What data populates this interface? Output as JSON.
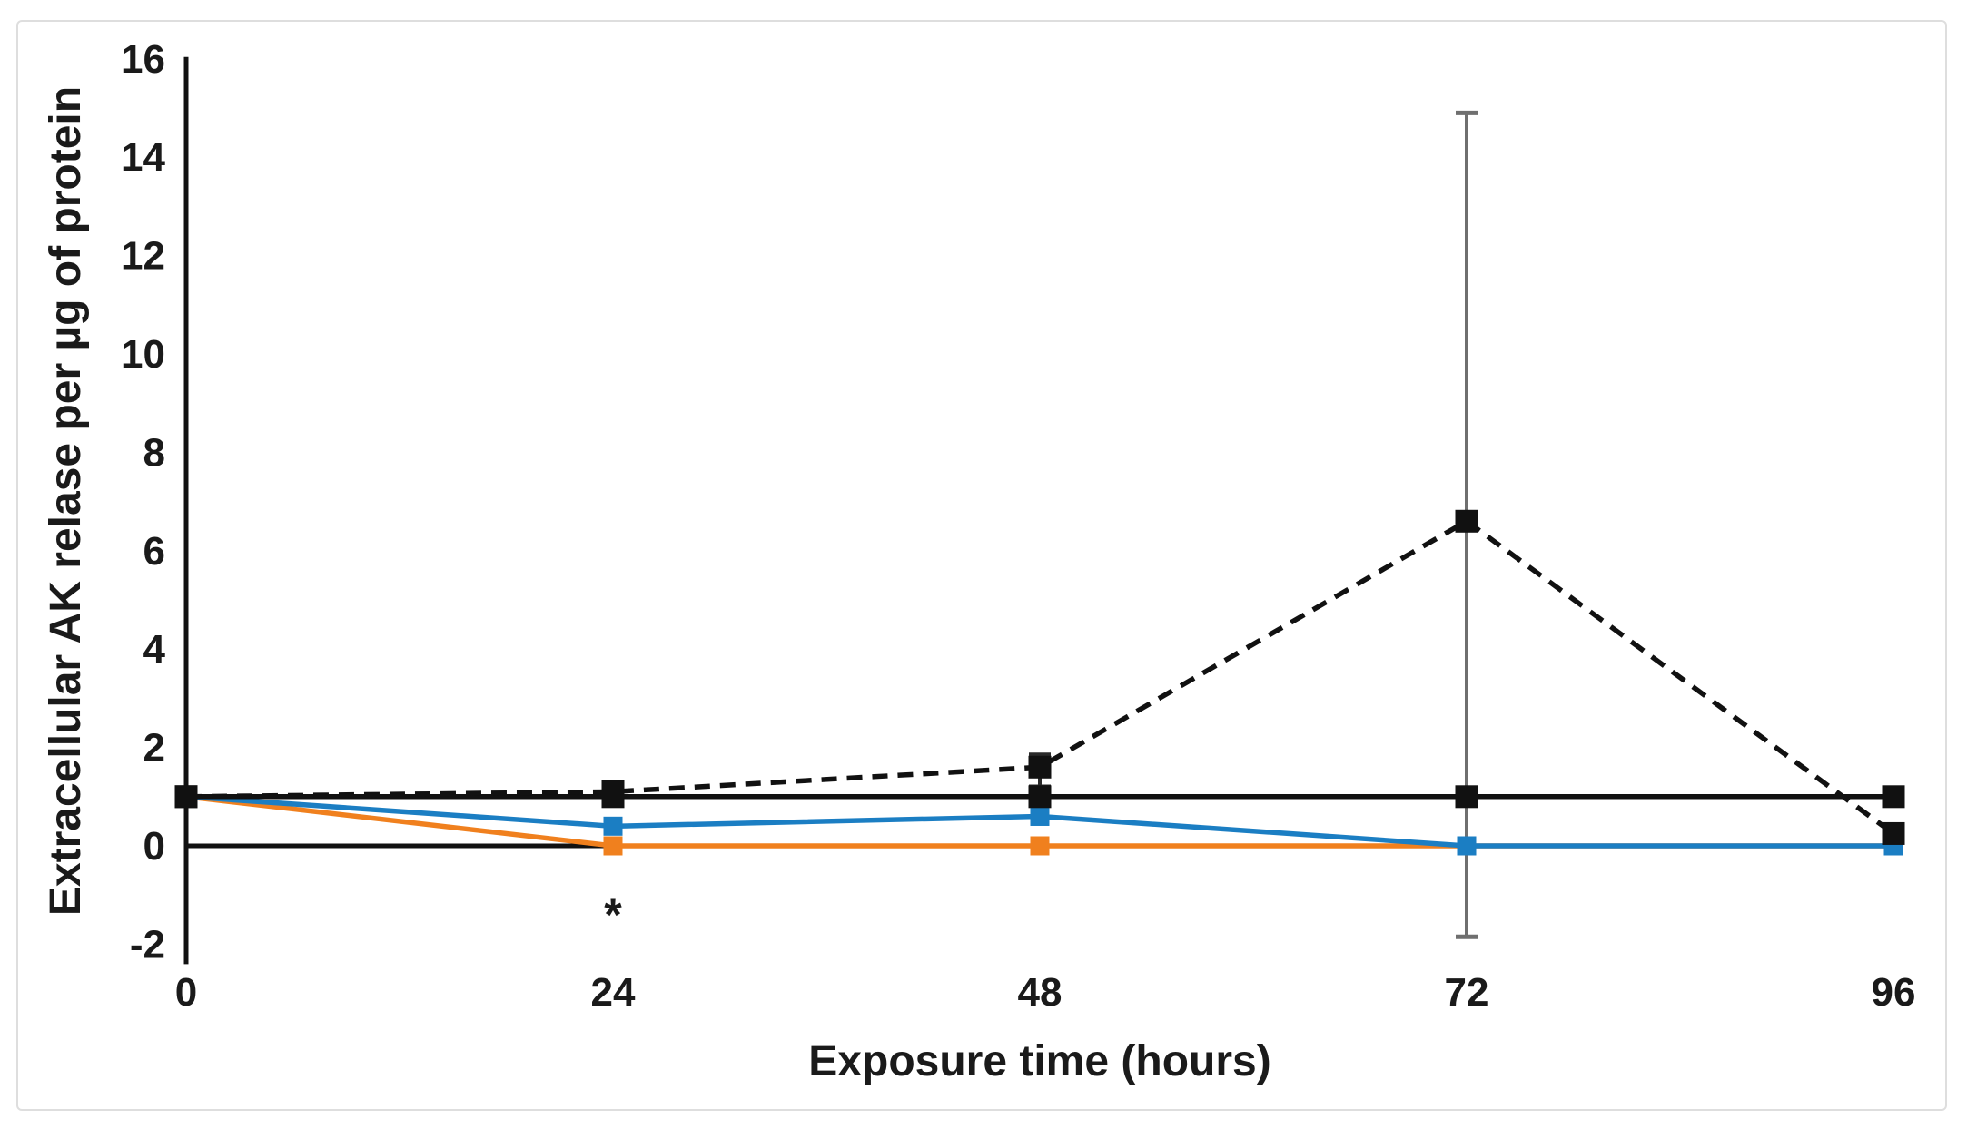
{
  "figure": {
    "background": "#ffffff",
    "border_color": "#dedede"
  },
  "chart_data": {
    "type": "line",
    "title": "",
    "xlabel": "Exposure time (hours)",
    "ylabel": "Extracellular AK relase per µg of protein",
    "xlim": [
      0,
      96
    ],
    "ylim": [
      -2,
      16
    ],
    "grid": false,
    "legend": "none",
    "x_ticks": [
      0,
      24,
      48,
      72,
      96
    ],
    "y_ticks": [
      16,
      14,
      12,
      10,
      8,
      6,
      4,
      2,
      0,
      -2
    ],
    "x": [
      0,
      24,
      48,
      72,
      96
    ],
    "series": [
      {
        "name": "orange-solid",
        "color": "#F0801E",
        "dash": "none",
        "marker": "square",
        "values": [
          1.0,
          0.0,
          0.0,
          0.0,
          0.0
        ]
      },
      {
        "name": "blue-solid",
        "color": "#1B7EC3",
        "dash": "none",
        "marker": "square",
        "values": [
          1.0,
          0.4,
          0.6,
          0.0,
          0.0
        ]
      },
      {
        "name": "black-solid",
        "color": "#111111",
        "dash": "none",
        "marker": "square",
        "values": [
          1.0,
          1.0,
          1.0,
          1.0,
          1.0
        ]
      },
      {
        "name": "black-dashed",
        "color": "#111111",
        "dash": "dashed",
        "marker": "square",
        "values": [
          1.0,
          1.1,
          1.6,
          6.6,
          0.25
        ]
      }
    ],
    "error_bars": [
      {
        "series": "black-dashed",
        "x": 48,
        "low": 1.2,
        "high": 1.85,
        "color": "#2a2a2a"
      },
      {
        "series": "black-dashed",
        "x": 72,
        "low": -1.85,
        "high": 14.9,
        "color": "#6f6f6f"
      }
    ],
    "annotations": [
      {
        "text": "*",
        "x": 24,
        "y": -1.35
      }
    ]
  }
}
